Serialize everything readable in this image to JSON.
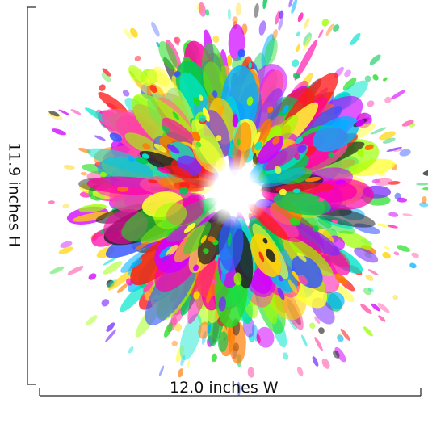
{
  "dimensions": {
    "width_label": "12.0 inches W",
    "height_label": "11.9 inches H"
  },
  "artwork": {
    "palette": [
      "#ff1a1a",
      "#ff7a00",
      "#ffd400",
      "#ffff33",
      "#9cff00",
      "#22dd22",
      "#00c853",
      "#00e5cc",
      "#00b0ff",
      "#3355ff",
      "#7a2cff",
      "#d000ff",
      "#ff00aa",
      "#ff4da6",
      "#222222"
    ],
    "center_color": "#ffffff"
  },
  "colors": {
    "line": "#222222",
    "text": "#111111",
    "background": "#ffffff"
  }
}
